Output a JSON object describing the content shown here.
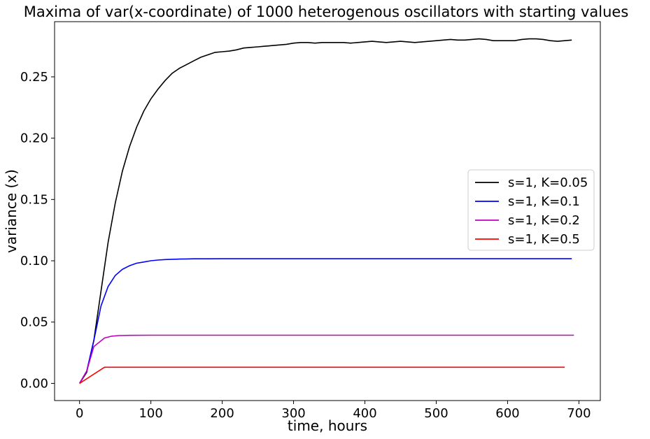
{
  "chart_data": {
    "type": "line",
    "title": "Maxima of var(x-coordinate) of 1000 heterogenous oscillators with starting values",
    "xlabel": "time, hours",
    "ylabel": "variance (x)",
    "xlim": [
      -35,
      730
    ],
    "ylim": [
      -0.014,
      0.295
    ],
    "xticks": [
      0,
      100,
      200,
      300,
      400,
      500,
      600,
      700
    ],
    "yticks": [
      0.0,
      0.05,
      0.1,
      0.15,
      0.2,
      0.25
    ],
    "ytick_labels": [
      "0.00",
      "0.05",
      "0.10",
      "0.15",
      "0.20",
      "0.25"
    ],
    "grid": false,
    "legend_position": "center-right",
    "series": [
      {
        "name": "s=1, K=0.05",
        "color": "#000000",
        "x": [
          0,
          10,
          20,
          30,
          40,
          50,
          60,
          70,
          80,
          90,
          100,
          110,
          120,
          130,
          140,
          150,
          160,
          170,
          180,
          190,
          200,
          210,
          220,
          230,
          240,
          250,
          260,
          270,
          280,
          290,
          300,
          310,
          320,
          330,
          340,
          350,
          360,
          370,
          380,
          390,
          400,
          410,
          420,
          430,
          440,
          450,
          460,
          470,
          480,
          490,
          500,
          510,
          520,
          530,
          540,
          550,
          560,
          570,
          580,
          590,
          600,
          610,
          620,
          630,
          640,
          650,
          660,
          670,
          680,
          690
        ],
        "y": [
          0.0,
          0.009,
          0.035,
          0.075,
          0.115,
          0.147,
          0.173,
          0.193,
          0.209,
          0.222,
          0.232,
          0.24,
          0.247,
          0.253,
          0.257,
          0.26,
          0.263,
          0.266,
          0.268,
          0.27,
          0.2705,
          0.271,
          0.272,
          0.2735,
          0.274,
          0.2745,
          0.275,
          0.2755,
          0.276,
          0.2765,
          0.2775,
          0.278,
          0.278,
          0.2775,
          0.278,
          0.278,
          0.278,
          0.278,
          0.2775,
          0.278,
          0.2785,
          0.279,
          0.2785,
          0.278,
          0.2785,
          0.279,
          0.2785,
          0.278,
          0.2785,
          0.279,
          0.2795,
          0.28,
          0.2805,
          0.28,
          0.28,
          0.2805,
          0.281,
          0.2805,
          0.2795,
          0.2795,
          0.2795,
          0.2795,
          0.2805,
          0.281,
          0.281,
          0.2805,
          0.2795,
          0.279,
          0.2795,
          0.28
        ]
      },
      {
        "name": "s=1, K=0.1",
        "color": "#0000ff",
        "x": [
          0,
          10,
          20,
          30,
          40,
          50,
          60,
          70,
          80,
          90,
          100,
          110,
          120,
          130,
          140,
          150,
          160,
          180,
          200,
          250,
          300,
          400,
          500,
          600,
          690
        ],
        "y": [
          0.0,
          0.01,
          0.035,
          0.063,
          0.079,
          0.088,
          0.093,
          0.096,
          0.098,
          0.099,
          0.1,
          0.1006,
          0.101,
          0.1012,
          0.1014,
          0.1015,
          0.1016,
          0.1016,
          0.1017,
          0.1017,
          0.1017,
          0.1017,
          0.1017,
          0.1017,
          0.1017
        ]
      },
      {
        "name": "s=1, K=0.2",
        "color": "#bf00bf",
        "x": [
          0,
          10,
          20,
          35,
          45,
          55,
          70,
          100,
          200,
          400,
          600,
          693
        ],
        "y": [
          0.0,
          0.01,
          0.03,
          0.037,
          0.0385,
          0.039,
          0.0392,
          0.0393,
          0.0393,
          0.0393,
          0.0393,
          0.0393
        ]
      },
      {
        "name": "s=1, K=0.5",
        "color": "#ff0000",
        "x": [
          0,
          35,
          100,
          300,
          500,
          680
        ],
        "y": [
          0.0,
          0.0132,
          0.0132,
          0.0132,
          0.0132,
          0.0132
        ]
      }
    ]
  }
}
